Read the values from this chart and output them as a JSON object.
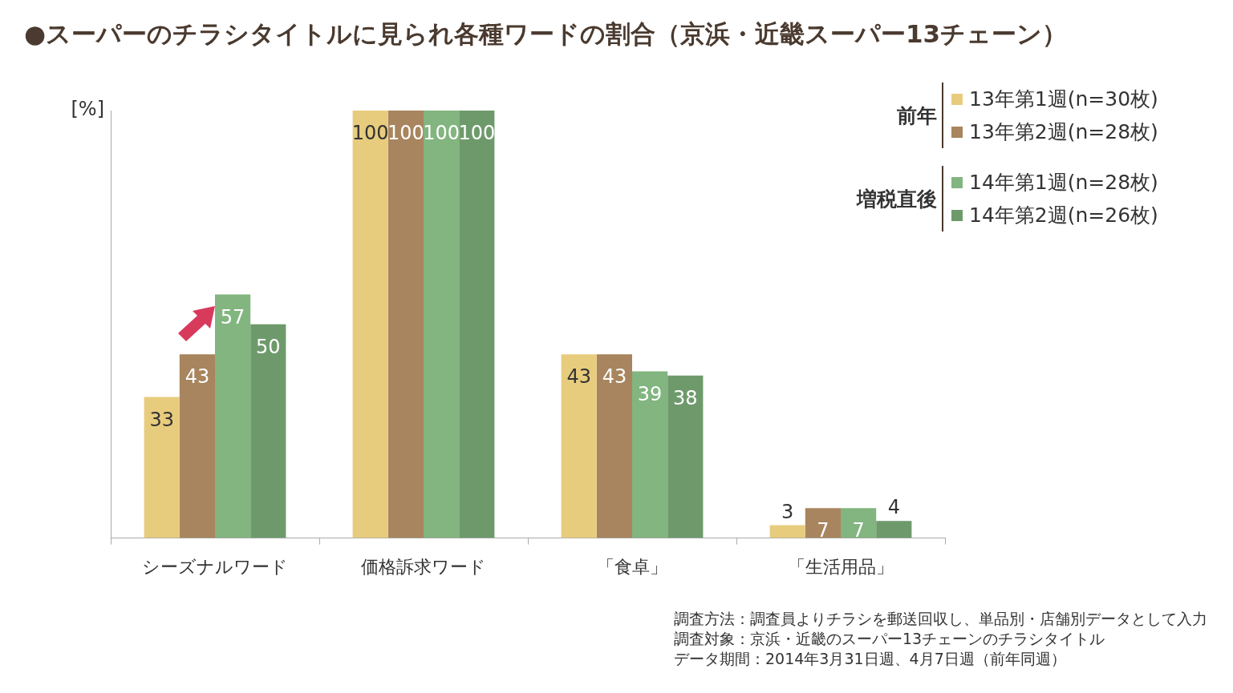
{
  "chart_data": {
    "type": "bar",
    "title": "●スーパーのチラシタイトルに見られ各種ワードの割合（京浜・近畿スーパー13チェーン）",
    "ylabel": "[%]",
    "categories": [
      "シーズナルワード",
      "価格訴求ワード",
      "「食卓」",
      "「生活用品」"
    ],
    "series": [
      {
        "name": "13年第1週(n=30枚)",
        "color": "#e8cc7e",
        "values": [
          33,
          100,
          43,
          3
        ]
      },
      {
        "name": "13年第2週(n=28枚)",
        "color": "#a8855e",
        "values": [
          43,
          100,
          43,
          7
        ]
      },
      {
        "name": "14年第1週(n=28枚)",
        "color": "#82b57f",
        "values": [
          57,
          100,
          39,
          7
        ]
      },
      {
        "name": "14年第2週(n=26枚)",
        "color": "#6e9a6b",
        "values": [
          50,
          100,
          38,
          4
        ]
      }
    ],
    "ylim": [
      0,
      100
    ],
    "tick_labels": "x",
    "data_labels": true,
    "legend": "top right",
    "grid": false,
    "annotations": [
      "前年",
      "増税直後",
      "調査方法：調査員よりチラシを郵送回収し、単品別・店舗別データとして入力",
      "調査対象：京浜・近畿のスーパー13チェーンのチラシタイトル",
      "データ期間：2014年3月31日週、4月7日週（前年同週）"
    ]
  }
}
